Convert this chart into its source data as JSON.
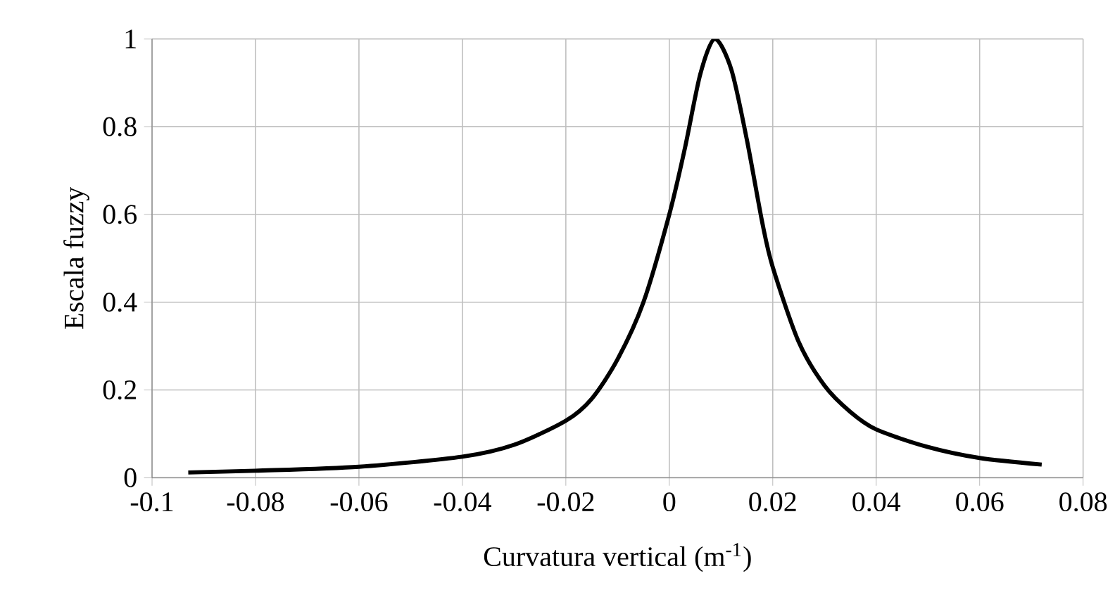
{
  "chart_data": {
    "type": "line",
    "xlabel": "Curvatura vertical (m$^{-1}$)",
    "ylabel": "Escala fuzzy",
    "x": [
      -0.093,
      -0.08,
      -0.06,
      -0.04,
      -0.03,
      -0.02,
      -0.015,
      -0.01,
      -0.005,
      0,
      0.003,
      0.006,
      0.0088,
      0.012,
      0.015,
      0.018,
      0.02,
      0.025,
      0.03,
      0.035,
      0.04,
      0.05,
      0.06,
      0.072
    ],
    "series": [
      {
        "color": "#000000",
        "values": [
          0.012,
          0.016,
          0.025,
          0.048,
          0.075,
          0.13,
          0.18,
          0.27,
          0.4,
          0.6,
          0.75,
          0.92,
          1,
          0.93,
          0.77,
          0.58,
          0.48,
          0.31,
          0.21,
          0.15,
          0.11,
          0.07,
          0.045,
          0.03
        ]
      }
    ],
    "xlim": [
      -0.1,
      0.08
    ],
    "ylim": [
      0,
      1
    ],
    "xticks": [
      -0.1,
      -0.08,
      -0.06,
      -0.04,
      -0.02,
      0,
      0.02,
      0.04,
      0.06,
      0.08
    ],
    "yticks": [
      0,
      0.2,
      0.4,
      0.6,
      0.8,
      1
    ],
    "grid": true,
    "marker": "none",
    "line_style": "solid"
  }
}
